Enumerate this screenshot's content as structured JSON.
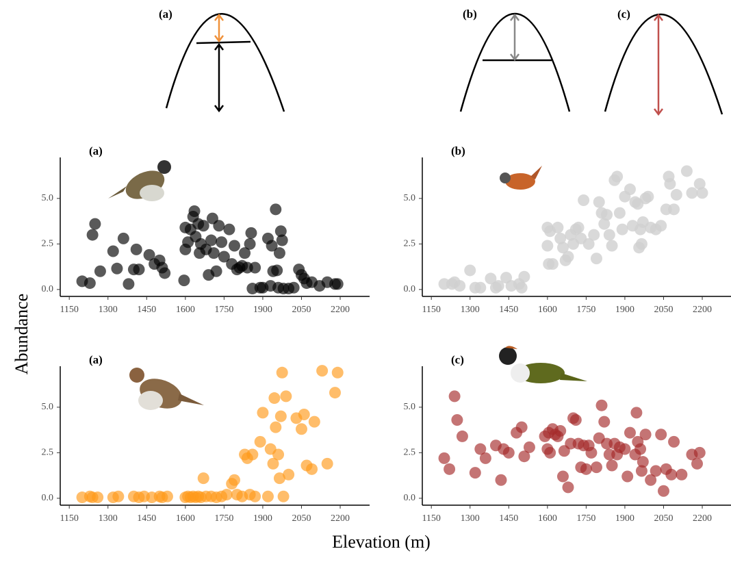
{
  "figure": {
    "xlabel": "Elevation (m)",
    "ylabel": "Abundance"
  },
  "diagram": {
    "labels": [
      "(a)",
      "(b)",
      "(c)"
    ]
  },
  "chart_data": [
    {
      "type": "scatter",
      "title": "(a)",
      "color": "#000000",
      "alpha": 0.65,
      "xlim": [
        1115,
        2314
      ],
      "xticks": [
        1150,
        1300,
        1450,
        1600,
        1750,
        1900,
        2050,
        2200
      ],
      "ylim": [
        -0.38,
        7.25
      ],
      "yticks": [
        {
          "value": 0,
          "label": "0.0"
        },
        {
          "value": 2.5,
          "label": "2.5"
        },
        {
          "value": 5,
          "label": "5.0"
        }
      ],
      "x": [
        1200,
        1230,
        1240,
        1250,
        1270,
        1320,
        1335,
        1360,
        1380,
        1400,
        1410,
        1420,
        1460,
        1480,
        1500,
        1510,
        1520,
        1595,
        1600,
        1600,
        1610,
        1620,
        1630,
        1635,
        1640,
        1650,
        1655,
        1660,
        1670,
        1680,
        1690,
        1700,
        1705,
        1710,
        1720,
        1730,
        1740,
        1750,
        1770,
        1780,
        1790,
        1800,
        1810,
        1820,
        1830,
        1840,
        1850,
        1855,
        1860,
        1870,
        1890,
        1900,
        1920,
        1930,
        1935,
        1940,
        1950,
        1955,
        1960,
        1965,
        1970,
        1975,
        1980,
        2000,
        2020,
        2040,
        2050,
        2060,
        2070,
        2090,
        2120,
        2150,
        2180,
        2190
      ],
      "values": [
        0.45,
        0.35,
        3.0,
        3.6,
        1.0,
        2.1,
        1.15,
        2.8,
        0.3,
        1.1,
        2.2,
        1.1,
        1.9,
        1.4,
        1.6,
        1.2,
        0.9,
        0.5,
        3.4,
        2.2,
        2.6,
        3.3,
        4.0,
        4.3,
        2.9,
        3.6,
        2.0,
        2.5,
        3.5,
        2.2,
        0.8,
        2.7,
        3.9,
        2.0,
        1.0,
        3.5,
        2.6,
        1.8,
        3.3,
        1.4,
        2.4,
        1.1,
        1.2,
        1.3,
        2.0,
        1.2,
        2.5,
        3.1,
        0.05,
        1.2,
        0.1,
        0.1,
        2.8,
        0.2,
        2.4,
        1.0,
        4.4,
        1.05,
        0.1,
        2.0,
        3.2,
        2.7,
        0.05,
        0.05,
        0.1,
        1.1,
        0.8,
        0.6,
        0.35,
        0.4,
        0.2,
        0.4,
        0.3,
        0.3
      ]
    },
    {
      "type": "scatter",
      "title": "(b)",
      "color": "#cfcfcf",
      "alpha": 0.8,
      "xlim": [
        1115,
        2314
      ],
      "xticks": [
        1150,
        1300,
        1450,
        1600,
        1750,
        1900,
        2050,
        2200
      ],
      "ylim": [
        -0.38,
        7.25
      ],
      "yticks": [
        {
          "value": 0,
          "label": "0.0"
        },
        {
          "value": 2.5,
          "label": "2.5"
        },
        {
          "value": 5,
          "label": "5.0"
        }
      ],
      "x": [
        1200,
        1230,
        1240,
        1260,
        1300,
        1320,
        1340,
        1380,
        1400,
        1410,
        1440,
        1460,
        1490,
        1500,
        1510,
        1600,
        1600,
        1605,
        1610,
        1620,
        1640,
        1650,
        1660,
        1670,
        1680,
        1690,
        1700,
        1710,
        1720,
        1730,
        1740,
        1760,
        1780,
        1790,
        1800,
        1810,
        1820,
        1830,
        1840,
        1850,
        1860,
        1870,
        1880,
        1890,
        1900,
        1920,
        1930,
        1940,
        1950,
        1955,
        1960,
        1965,
        1970,
        1980,
        1990,
        2000,
        2020,
        2040,
        2060,
        2070,
        2075,
        2090,
        2100,
        2140,
        2160,
        2190,
        2200
      ],
      "values": [
        0.3,
        0.3,
        0.4,
        0.2,
        1.05,
        0.1,
        0.1,
        0.6,
        0.1,
        0.2,
        0.65,
        0.2,
        0.3,
        0.1,
        0.7,
        3.4,
        2.4,
        1.4,
        3.2,
        1.4,
        3.4,
        2.8,
        2.3,
        1.6,
        1.8,
        3.0,
        2.5,
        3.3,
        3.4,
        2.8,
        4.9,
        2.5,
        3.0,
        1.7,
        4.8,
        4.2,
        3.6,
        4.1,
        3.0,
        2.4,
        6.0,
        6.2,
        4.2,
        3.3,
        5.1,
        5.5,
        3.5,
        4.8,
        4.7,
        2.3,
        3.3,
        2.5,
        3.7,
        5.0,
        5.1,
        3.4,
        3.3,
        3.5,
        4.4,
        6.2,
        5.8,
        4.4,
        5.2,
        6.5,
        5.3,
        5.8,
        5.3
      ]
    },
    {
      "type": "scatter",
      "title": "(a)",
      "color": "#ff9a1a",
      "alpha": 0.65,
      "xlim": [
        1115,
        2314
      ],
      "xticks": [
        1150,
        1300,
        1450,
        1600,
        1750,
        1900,
        2050,
        2200
      ],
      "ylim": [
        -0.38,
        7.25
      ],
      "yticks": [
        {
          "value": 0,
          "label": "0.0"
        },
        {
          "value": 2.5,
          "label": "2.5"
        },
        {
          "value": 5,
          "label": "5.0"
        }
      ],
      "x": [
        1200,
        1230,
        1240,
        1260,
        1320,
        1340,
        1400,
        1420,
        1440,
        1470,
        1500,
        1510,
        1530,
        1600,
        1610,
        1620,
        1630,
        1640,
        1650,
        1660,
        1670,
        1680,
        1700,
        1720,
        1740,
        1760,
        1780,
        1790,
        1800,
        1820,
        1830,
        1840,
        1850,
        1860,
        1870,
        1890,
        1900,
        1920,
        1930,
        1940,
        1945,
        1950,
        1960,
        1965,
        1970,
        1975,
        1980,
        1990,
        2000,
        2030,
        2050,
        2060,
        2070,
        2090,
        2100,
        2130,
        2150,
        2180,
        2190
      ],
      "values": [
        0.05,
        0.1,
        0.05,
        0.05,
        0.05,
        0.1,
        0.1,
        0.05,
        0.1,
        0.05,
        0.1,
        0.05,
        0.1,
        0.05,
        0.1,
        0.05,
        0.1,
        0.05,
        0.1,
        0.05,
        1.1,
        0.1,
        0.1,
        0.05,
        0.1,
        0.2,
        0.8,
        1.0,
        0.2,
        0.1,
        2.4,
        2.2,
        0.2,
        2.4,
        0.1,
        3.1,
        4.7,
        0.1,
        2.7,
        1.9,
        5.5,
        3.9,
        2.4,
        1.1,
        4.5,
        6.9,
        0.1,
        5.6,
        1.3,
        4.4,
        3.8,
        4.6,
        1.8,
        1.6,
        4.2,
        7.0,
        1.9,
        5.8,
        6.9
      ]
    },
    {
      "type": "scatter",
      "title": "(c)",
      "color": "#a52a2a",
      "alpha": 0.65,
      "xlim": [
        1115,
        2314
      ],
      "xticks": [
        1150,
        1300,
        1450,
        1600,
        1750,
        1900,
        2050,
        2200
      ],
      "ylim": [
        -0.38,
        7.25
      ],
      "yticks": [
        {
          "value": 0,
          "label": "0.0"
        },
        {
          "value": 2.5,
          "label": "2.5"
        },
        {
          "value": 5,
          "label": "5.0"
        }
      ],
      "x": [
        1200,
        1220,
        1240,
        1250,
        1270,
        1320,
        1340,
        1360,
        1400,
        1420,
        1430,
        1450,
        1480,
        1500,
        1510,
        1530,
        1590,
        1600,
        1605,
        1610,
        1620,
        1630,
        1640,
        1650,
        1660,
        1665,
        1680,
        1690,
        1700,
        1710,
        1720,
        1730,
        1740,
        1750,
        1760,
        1770,
        1790,
        1800,
        1810,
        1820,
        1830,
        1840,
        1850,
        1860,
        1870,
        1880,
        1900,
        1910,
        1920,
        1940,
        1945,
        1950,
        1960,
        1965,
        1970,
        1980,
        2000,
        2020,
        2040,
        2050,
        2060,
        2080,
        2090,
        2120,
        2160,
        2180,
        2190
      ],
      "values": [
        2.2,
        1.6,
        5.6,
        4.3,
        3.4,
        1.4,
        2.7,
        2.2,
        2.9,
        1.0,
        2.7,
        2.5,
        3.6,
        3.9,
        2.3,
        2.8,
        3.4,
        2.7,
        3.6,
        2.5,
        3.8,
        3.5,
        3.4,
        3.7,
        1.2,
        2.6,
        0.6,
        3.0,
        4.4,
        4.3,
        3.0,
        1.7,
        2.9,
        1.6,
        2.9,
        2.5,
        1.7,
        3.3,
        5.1,
        4.2,
        3.0,
        2.4,
        1.8,
        3.0,
        2.4,
        2.8,
        2.7,
        1.2,
        3.6,
        2.4,
        4.7,
        3.1,
        2.7,
        1.5,
        2.0,
        3.5,
        1.0,
        1.5,
        3.5,
        0.4,
        1.6,
        1.3,
        3.1,
        1.3,
        2.4,
        1.9,
        2.5
      ]
    }
  ]
}
